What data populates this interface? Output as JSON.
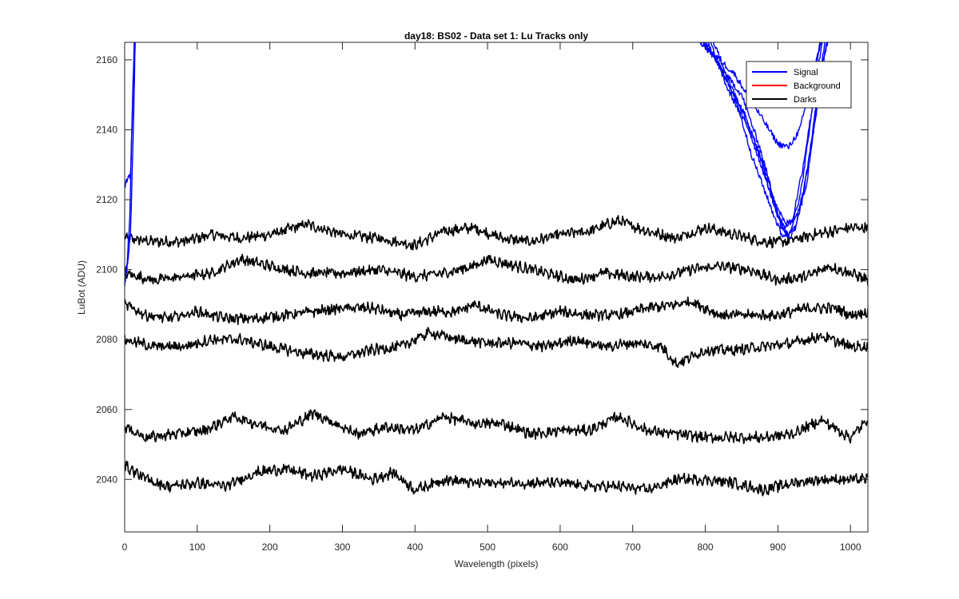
{
  "chart_data": {
    "type": "line",
    "title": "day18: BS02 - Data set 1: Lu Tracks only",
    "xlabel": "Wavelength (pixels)",
    "ylabel": "LuBot (ADU)",
    "xlim": [
      0,
      1024
    ],
    "ylim": [
      2025,
      2165
    ],
    "xticks": [
      0,
      100,
      200,
      300,
      400,
      500,
      600,
      700,
      800,
      900,
      1000
    ],
    "yticks": [
      2040,
      2060,
      2080,
      2100,
      2120,
      2140,
      2160
    ],
    "grid": false,
    "legend": {
      "position": "top-right",
      "entries": [
        {
          "name": "Signal",
          "color": "#0000ff"
        },
        {
          "name": "Background",
          "color": "#ff0000"
        },
        {
          "name": "Darks",
          "color": "#000000"
        }
      ]
    },
    "series": [
      {
        "group": "Darks",
        "color": "#000000",
        "x": [
          0,
          40,
          80,
          120,
          160,
          200,
          250,
          300,
          350,
          400,
          440,
          480,
          520,
          560,
          600,
          640,
          680,
          720,
          760,
          800,
          840,
          880,
          910,
          950,
          1000,
          1024
        ],
        "y": [
          2109,
          2108,
          2108,
          2110,
          2109,
          2110,
          2113,
          2110,
          2109,
          2107,
          2111,
          2112,
          2109,
          2108,
          2110,
          2111,
          2114,
          2111,
          2109,
          2112,
          2110,
          2108,
          2108,
          2110,
          2112,
          2112
        ]
      },
      {
        "group": "Darks",
        "color": "#000000",
        "x": [
          0,
          40,
          80,
          120,
          160,
          200,
          250,
          300,
          350,
          400,
          440,
          480,
          500,
          540,
          580,
          620,
          660,
          700,
          740,
          780,
          820,
          860,
          900,
          940,
          970,
          1000,
          1024
        ],
        "y": [
          2099,
          2097,
          2098,
          2099,
          2103,
          2101,
          2099,
          2099,
          2100,
          2098,
          2099,
          2101,
          2103,
          2101,
          2099,
          2097,
          2099,
          2098,
          2098,
          2100,
          2101,
          2100,
          2097,
          2098,
          2101,
          2099,
          2097
        ]
      },
      {
        "group": "Darks",
        "color": "#000000",
        "x": [
          0,
          30,
          60,
          100,
          140,
          180,
          220,
          260,
          300,
          340,
          380,
          420,
          460,
          480,
          520,
          560,
          600,
          640,
          680,
          720,
          760,
          780,
          820,
          860,
          900,
          940,
          980,
          1000,
          1024
        ],
        "y": [
          2090,
          2087,
          2086,
          2088,
          2086,
          2086,
          2087,
          2088,
          2089,
          2089,
          2087,
          2088,
          2088,
          2090,
          2087,
          2086,
          2088,
          2087,
          2087,
          2089,
          2090,
          2091,
          2087,
          2087,
          2087,
          2089,
          2089,
          2087,
          2088
        ]
      },
      {
        "group": "Darks",
        "color": "#000000",
        "x": [
          0,
          40,
          80,
          120,
          160,
          200,
          250,
          300,
          340,
          380,
          420,
          460,
          500,
          540,
          580,
          620,
          660,
          700,
          740,
          760,
          800,
          840,
          880,
          920,
          960,
          1000,
          1024
        ],
        "y": [
          2080,
          2078,
          2078,
          2080,
          2080,
          2078,
          2076,
          2075,
          2077,
          2078,
          2082,
          2080,
          2079,
          2079,
          2078,
          2080,
          2078,
          2079,
          2078,
          2073,
          2077,
          2077,
          2078,
          2079,
          2081,
          2078,
          2078
        ]
      },
      {
        "group": "Darks",
        "color": "#000000",
        "x": [
          0,
          30,
          70,
          110,
          150,
          180,
          220,
          260,
          290,
          320,
          360,
          400,
          440,
          480,
          520,
          560,
          600,
          640,
          680,
          720,
          760,
          800,
          840,
          880,
          920,
          960,
          1000,
          1024
        ],
        "y": [
          2055,
          2052,
          2053,
          2054,
          2058,
          2056,
          2054,
          2059,
          2056,
          2053,
          2055,
          2054,
          2058,
          2056,
          2056,
          2053,
          2054,
          2054,
          2058,
          2054,
          2053,
          2052,
          2052,
          2052,
          2053,
          2057,
          2052,
          2057
        ]
      },
      {
        "group": "Darks",
        "color": "#000000",
        "x": [
          0,
          30,
          60,
          100,
          140,
          180,
          220,
          260,
          300,
          340,
          370,
          400,
          440,
          480,
          520,
          560,
          600,
          640,
          680,
          720,
          760,
          800,
          840,
          880,
          920,
          960,
          1000,
          1024
        ],
        "y": [
          2044,
          2040,
          2038,
          2039,
          2038,
          2042,
          2043,
          2041,
          2043,
          2040,
          2042,
          2037,
          2040,
          2039,
          2039,
          2039,
          2039,
          2038,
          2038,
          2037,
          2040,
          2040,
          2039,
          2037,
          2039,
          2040,
          2040,
          2040
        ]
      },
      {
        "group": "Signal",
        "color": "#0000ff",
        "x": [
          0,
          5,
          8,
          10,
          13,
          15
        ],
        "y": [
          2124,
          2126,
          2127,
          2140,
          2160,
          2170
        ]
      },
      {
        "group": "Signal",
        "color": "#0000ff",
        "x": [
          0,
          4,
          8,
          12,
          15
        ],
        "y": [
          2098,
          2102,
          2110,
          2140,
          2170
        ]
      },
      {
        "group": "Signal",
        "color": "#0000ff",
        "x": [
          0,
          3,
          7,
          11,
          14
        ],
        "y": [
          2095,
          2100,
          2115,
          2150,
          2170
        ]
      },
      {
        "group": "Signal",
        "color": "#0000ff",
        "x": [
          790,
          810,
          840,
          870,
          900,
          915,
          930,
          945,
          960
        ],
        "y": [
          2166,
          2162,
          2156,
          2146,
          2136,
          2135,
          2140,
          2152,
          2166
        ]
      },
      {
        "group": "Signal",
        "color": "#0000ff",
        "x": [
          795,
          820,
          850,
          875,
          895,
          910,
          925,
          940,
          952,
          962,
          970
        ],
        "y": [
          2166,
          2158,
          2150,
          2135,
          2120,
          2113,
          2115,
          2125,
          2145,
          2160,
          2166
        ]
      },
      {
        "group": "Signal",
        "color": "#0000ff",
        "x": [
          800,
          825,
          855,
          880,
          900,
          912,
          925,
          940,
          955,
          965
        ],
        "y": [
          2166,
          2156,
          2144,
          2130,
          2116,
          2110,
          2112,
          2128,
          2150,
          2166
        ]
      },
      {
        "group": "Signal",
        "color": "#0000ff",
        "x": [
          790,
          815,
          845,
          870,
          892,
          908,
          920,
          935,
          950,
          962
        ],
        "y": [
          2166,
          2160,
          2148,
          2136,
          2120,
          2112,
          2114,
          2130,
          2150,
          2166
        ]
      },
      {
        "group": "Signal",
        "color": "#0000ff",
        "x": [
          805,
          830,
          860,
          885,
          905,
          918,
          932,
          948,
          960,
          968
        ],
        "y": [
          2166,
          2152,
          2140,
          2125,
          2112,
          2109,
          2118,
          2138,
          2155,
          2166
        ]
      },
      {
        "group": "Signal",
        "color": "#0000ff",
        "x": [
          810,
          840,
          865,
          890,
          905,
          915,
          930,
          945,
          958
        ],
        "y": [
          2166,
          2150,
          2132,
          2118,
          2110,
          2110,
          2120,
          2142,
          2166
        ]
      }
    ]
  }
}
